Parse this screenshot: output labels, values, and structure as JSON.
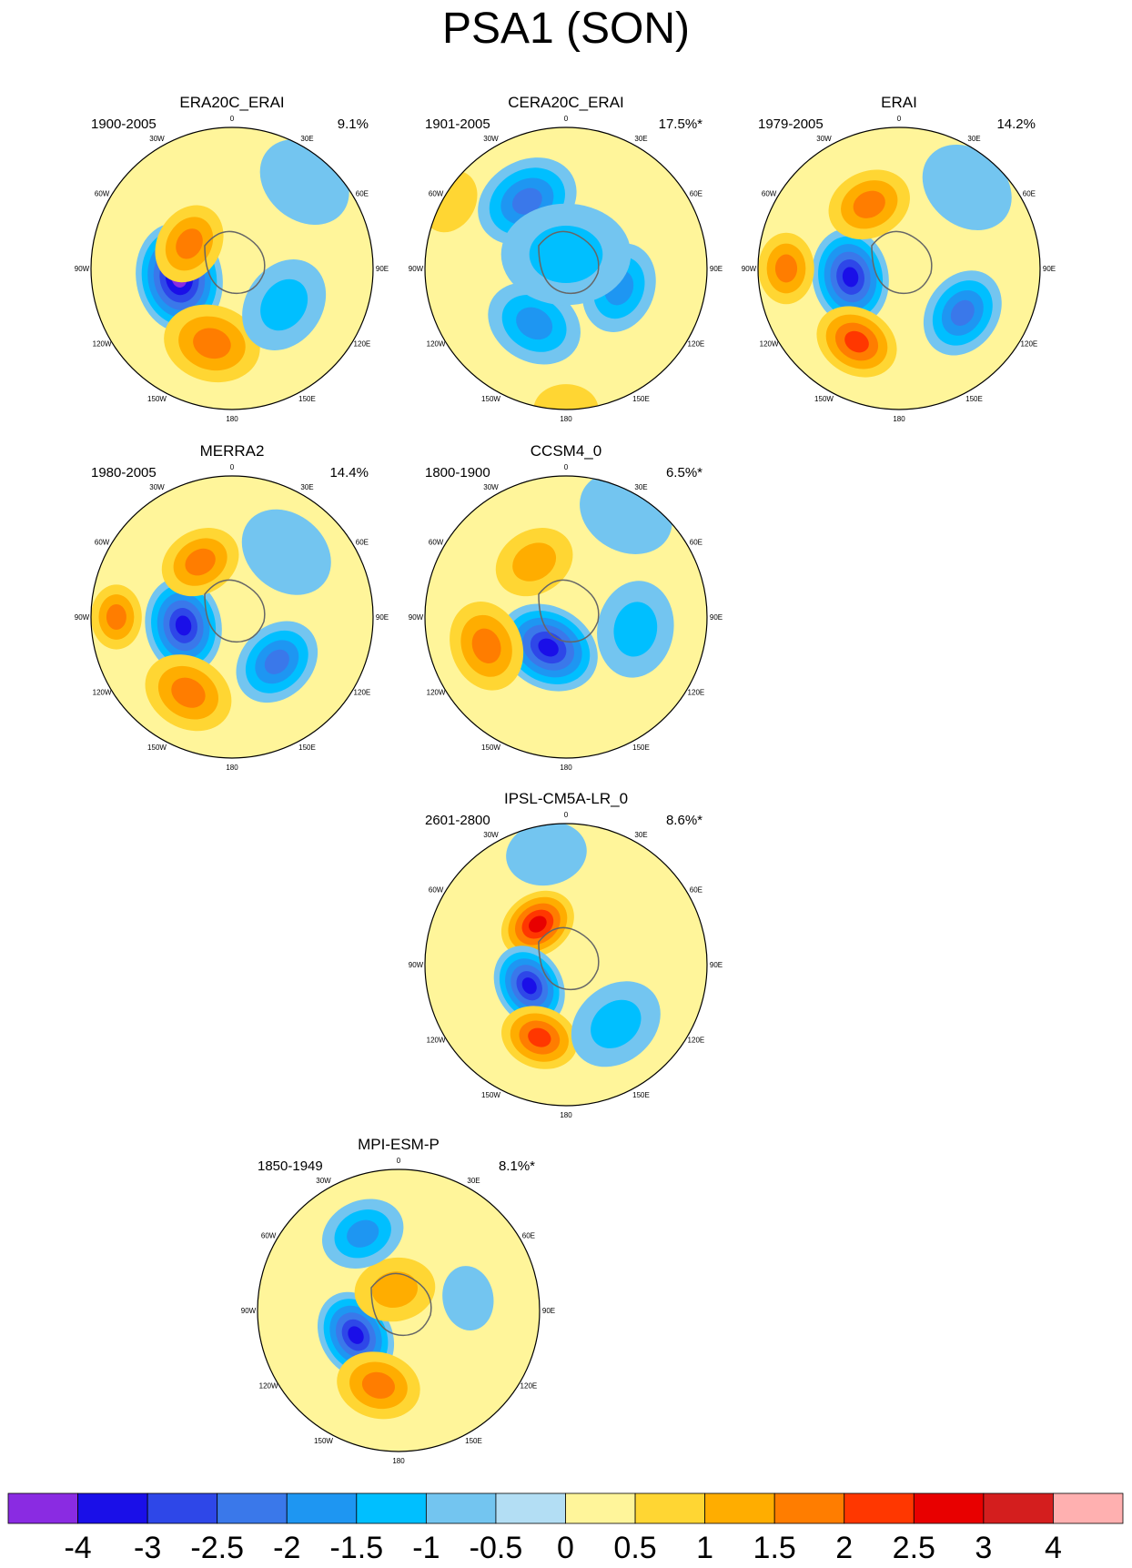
{
  "figure": {
    "title": "PSA1 (SON)"
  },
  "chart_data": {
    "type": "polar_contour_panels",
    "title": "PSA1 (SON)",
    "projection": "south polar stereographic",
    "longitude_labels": [
      "0",
      "30E",
      "60E",
      "90E",
      "120E",
      "150E",
      "180",
      "150W",
      "120W",
      "90W",
      "60W",
      "30W"
    ],
    "colorbar": {
      "levels": [
        "-4",
        "-3",
        "-2.5",
        "-2",
        "-1.5",
        "-1",
        "-0.5",
        "0",
        "0.5",
        "1",
        "1.5",
        "2",
        "2.5",
        "3",
        "4"
      ],
      "colors": [
        "#8a2be2",
        "#1a0fe8",
        "#2e47e8",
        "#3a78ea",
        "#1e96f2",
        "#00bfff",
        "#73c5f0",
        "#b3def4",
        "#fff59a",
        "#ffd633",
        "#ffad00",
        "#ff7d00",
        "#ff3700",
        "#e80000",
        "#d41e1e",
        "#ffb0b0"
      ]
    },
    "panels": [
      {
        "name": "ERA20C_ERAI",
        "period": "1900-2005",
        "variance": "9.1%",
        "centers": [
          {
            "lon": -100,
            "r": 0.38,
            "v": -4,
            "rad": 0.34
          },
          {
            "lon": -165,
            "r": 0.55,
            "v": 1.5,
            "rad": 0.3
          },
          {
            "lon": -60,
            "r": 0.35,
            "v": 1.5,
            "rad": 0.25
          },
          {
            "lon": 125,
            "r": 0.45,
            "v": -1,
            "rad": 0.3
          },
          {
            "lon": 40,
            "r": 0.8,
            "v": -0.5,
            "rad": 0.3
          }
        ]
      },
      {
        "name": "CERA20C_ERAI",
        "period": "1901-2005",
        "variance": "17.5%*",
        "centers": [
          {
            "lon": -30,
            "r": 0.55,
            "v": -2,
            "rad": 0.32
          },
          {
            "lon": -150,
            "r": 0.45,
            "v": -1.5,
            "rad": 0.3
          },
          {
            "lon": 110,
            "r": 0.4,
            "v": -1.5,
            "rad": 0.28
          },
          {
            "lon": -60,
            "r": 0.95,
            "v": 0.5,
            "rad": 0.2
          },
          {
            "lon": 180,
            "r": 1.0,
            "v": 0.5,
            "rad": 0.2
          },
          {
            "lon": 0,
            "r": 0.1,
            "v": -1,
            "rad": 0.4
          }
        ]
      },
      {
        "name": "ERAI",
        "period": "1979-2005",
        "variance": "14.2%",
        "centers": [
          {
            "lon": -100,
            "r": 0.35,
            "v": -3,
            "rad": 0.3
          },
          {
            "lon": -150,
            "r": 0.6,
            "v": 2,
            "rad": 0.26
          },
          {
            "lon": -25,
            "r": 0.5,
            "v": 1.5,
            "rad": 0.26
          },
          {
            "lon": -90,
            "r": 0.8,
            "v": 1.5,
            "rad": 0.22
          },
          {
            "lon": 125,
            "r": 0.55,
            "v": -2,
            "rad": 0.28
          },
          {
            "lon": 40,
            "r": 0.75,
            "v": -0.5,
            "rad": 0.3
          }
        ]
      },
      {
        "name": "MERRA2",
        "period": "1980-2005",
        "variance": "14.4%",
        "centers": [
          {
            "lon": -100,
            "r": 0.35,
            "v": -3,
            "rad": 0.3
          },
          {
            "lon": -150,
            "r": 0.62,
            "v": 1.5,
            "rad": 0.28
          },
          {
            "lon": -30,
            "r": 0.45,
            "v": 1.5,
            "rad": 0.25
          },
          {
            "lon": -90,
            "r": 0.82,
            "v": 1.5,
            "rad": 0.2
          },
          {
            "lon": 135,
            "r": 0.45,
            "v": -2,
            "rad": 0.28
          },
          {
            "lon": 40,
            "r": 0.6,
            "v": -0.5,
            "rad": 0.3
          }
        ]
      },
      {
        "name": "CCSM4_0",
        "period": "1800-1900",
        "variance": "6.5%*",
        "centers": [
          {
            "lon": -150,
            "r": 0.25,
            "v": -3,
            "rad": 0.32
          },
          {
            "lon": -110,
            "r": 0.6,
            "v": 1.5,
            "rad": 0.28
          },
          {
            "lon": -30,
            "r": 0.45,
            "v": 1,
            "rad": 0.25
          },
          {
            "lon": 100,
            "r": 0.5,
            "v": -1,
            "rad": 0.3
          },
          {
            "lon": 30,
            "r": 0.85,
            "v": -0.5,
            "rad": 0.3
          }
        ]
      },
      {
        "name": "IPSL-CM5A-LR_0",
        "period": "2601-2800",
        "variance": "8.6%*",
        "centers": [
          {
            "lon": -35,
            "r": 0.35,
            "v": 2.5,
            "rad": 0.24
          },
          {
            "lon": -120,
            "r": 0.3,
            "v": -3,
            "rad": 0.26
          },
          {
            "lon": -160,
            "r": 0.55,
            "v": 2,
            "rad": 0.24
          },
          {
            "lon": 140,
            "r": 0.55,
            "v": -1,
            "rad": 0.3
          },
          {
            "lon": -10,
            "r": 0.8,
            "v": -0.5,
            "rad": 0.25
          }
        ]
      },
      {
        "name": "MPI-ESM-P",
        "period": "1850-1949",
        "variance": "8.1%*",
        "centers": [
          {
            "lon": -120,
            "r": 0.35,
            "v": -3,
            "rad": 0.28
          },
          {
            "lon": -165,
            "r": 0.55,
            "v": 1.5,
            "rad": 0.26
          },
          {
            "lon": -10,
            "r": 0.15,
            "v": 1,
            "rad": 0.25
          },
          {
            "lon": -25,
            "r": 0.6,
            "v": -1.5,
            "rad": 0.26
          },
          {
            "lon": 80,
            "r": 0.5,
            "v": -0.5,
            "rad": 0.2
          }
        ]
      }
    ]
  }
}
